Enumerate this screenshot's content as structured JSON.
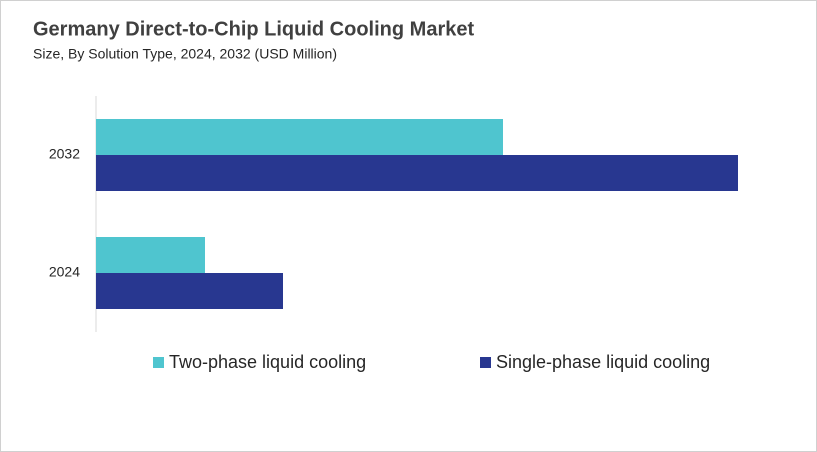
{
  "chart_data": {
    "type": "hbar",
    "title": "Germany Direct-to-Chip Liquid Cooling Market",
    "subtitle": "Size, By Solution Type, 2024, 2032 (USD Million)",
    "categories": [
      "2032",
      "2024"
    ],
    "series": [
      {
        "name": "Two-phase liquid cooling",
        "color": "#4fc5cf",
        "values": [
          40.7,
          10.9
        ]
      },
      {
        "name": "Single-phase liquid cooling",
        "color": "#283790",
        "values": [
          64.2,
          18.7
        ]
      }
    ],
    "xlim": [
      0,
      70
    ]
  }
}
